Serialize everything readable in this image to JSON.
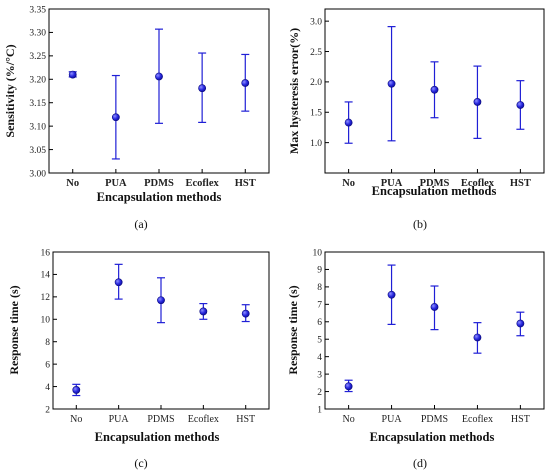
{
  "chart_data": [
    {
      "type": "scatter",
      "panel_label": "(a)",
      "xlabel": "Encapsulation methods",
      "ylabel": "Sensitivity (%/°C)",
      "categories": [
        "No",
        "PUA",
        "PDMS",
        "Ecoflex",
        "HST"
      ],
      "bold_ticks": true,
      "ylim": [
        3.0,
        3.35
      ],
      "yticks": [
        3.0,
        3.05,
        3.1,
        3.15,
        3.2,
        3.25,
        3.3,
        3.35
      ],
      "ytick_labels": [
        "3.00",
        "3.05",
        "3.10",
        "3.15",
        "3.20",
        "3.25",
        "3.30",
        "3.35"
      ],
      "values": [
        3.21,
        3.119,
        3.206,
        3.181,
        3.192
      ],
      "err_low": [
        3.205,
        3.03,
        3.106,
        3.108,
        3.132
      ],
      "err_high": [
        3.216,
        3.208,
        3.307,
        3.256,
        3.253
      ],
      "marker_color": "#1f1fd6"
    },
    {
      "type": "scatter",
      "panel_label": "(b)",
      "xlabel": "Encapsulation methods",
      "ylabel": "Max hysteresis error(%)",
      "categories": [
        "No",
        "PUA",
        "PDMS",
        "Ecoflex",
        "HST"
      ],
      "bold_ticks": true,
      "ylim": [
        0.5,
        3.2
      ],
      "yticks": [
        1.0,
        1.5,
        2.0,
        2.5,
        3.0
      ],
      "ytick_labels": [
        "1.0",
        "1.5",
        "2.0",
        "2.5",
        "3.0"
      ],
      "values": [
        1.33,
        1.97,
        1.87,
        1.67,
        1.62
      ],
      "err_low": [
        0.99,
        1.03,
        1.41,
        1.07,
        1.22
      ],
      "err_high": [
        1.67,
        2.91,
        2.33,
        2.26,
        2.02
      ],
      "marker_color": "#1f1fd6"
    },
    {
      "type": "scatter",
      "panel_label": "(c)",
      "xlabel": "Encapsulation methods",
      "ylabel": "Response time (s)",
      "categories": [
        "No",
        "PUA",
        "PDMS",
        "Ecoflex",
        "HST"
      ],
      "bold_ticks": false,
      "ylim": [
        2,
        16
      ],
      "yticks": [
        2,
        4,
        6,
        8,
        10,
        12,
        14,
        16
      ],
      "ytick_labels": [
        "2",
        "4",
        "6",
        "8",
        "10",
        "12",
        "14",
        "16"
      ],
      "values": [
        3.7,
        13.3,
        11.7,
        10.7,
        10.5
      ],
      "err_low": [
        3.2,
        11.8,
        9.7,
        10.0,
        9.8
      ],
      "err_high": [
        4.2,
        14.9,
        13.7,
        11.4,
        11.3
      ],
      "marker_color": "#1f1fd6"
    },
    {
      "type": "scatter",
      "panel_label": "(d)",
      "xlabel": "Encapsulation methods",
      "ylabel": "Response time (s)",
      "categories": [
        "No",
        "PUA",
        "PDMS",
        "Ecoflex",
        "HST"
      ],
      "bold_ticks": false,
      "ylim": [
        1,
        10
      ],
      "yticks": [
        1,
        2,
        3,
        4,
        5,
        6,
        7,
        8,
        9,
        10
      ],
      "ytick_labels": [
        "1",
        "2",
        "3",
        "4",
        "5",
        "6",
        "7",
        "8",
        "9",
        "10"
      ],
      "values": [
        2.3,
        7.55,
        6.85,
        5.1,
        5.9
      ],
      "err_low": [
        2.0,
        5.85,
        5.55,
        4.2,
        5.2
      ],
      "err_high": [
        2.65,
        9.25,
        8.05,
        5.95,
        6.55
      ],
      "marker_color": "#1f1fd6"
    }
  ]
}
